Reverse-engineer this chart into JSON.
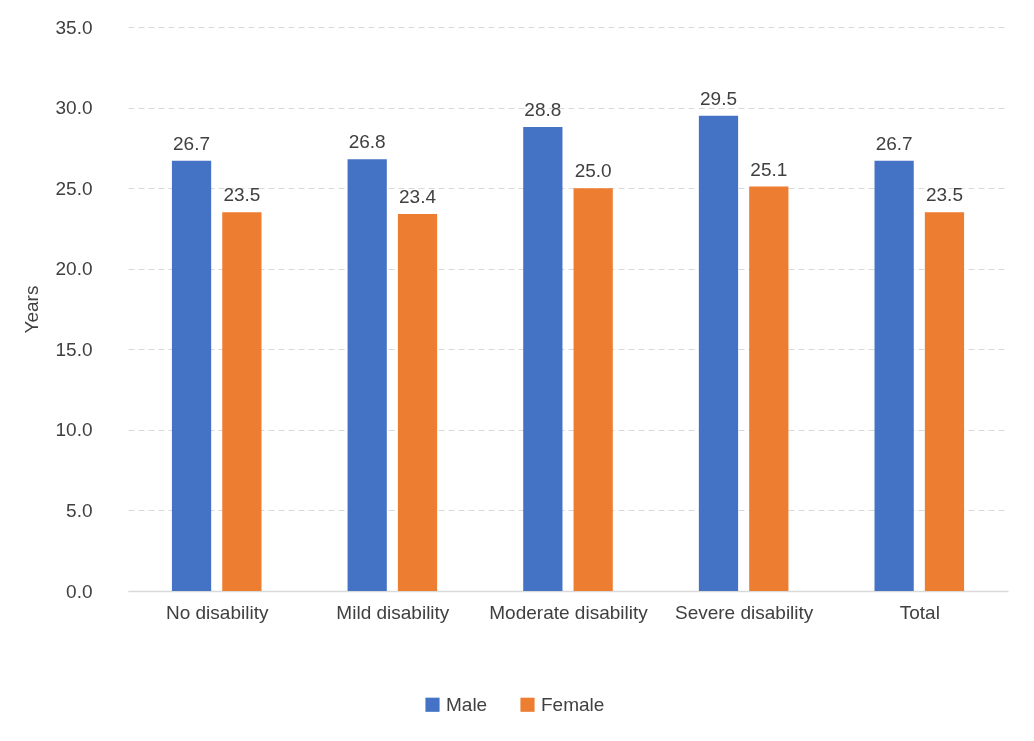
{
  "chart_data": {
    "type": "bar",
    "ylabel": "Years",
    "categories": [
      "No disability",
      "Mild disability",
      "Moderate disability",
      "Severe disability",
      "Total"
    ],
    "series": [
      {
        "name": "Male",
        "color": "#4472c4",
        "values": [
          26.7,
          26.8,
          28.8,
          29.5,
          26.7
        ],
        "value_labels": [
          "26.7",
          "26.8",
          "28.8",
          "29.5",
          "26.7"
        ]
      },
      {
        "name": "Female",
        "color": "#ed7d31",
        "values": [
          23.5,
          23.4,
          25.0,
          25.1,
          23.5
        ],
        "value_labels": [
          "23.5",
          "23.4",
          "25.0",
          "25.1",
          "23.5"
        ]
      }
    ],
    "ylim": [
      0,
      35
    ],
    "yticks": [
      {
        "value": 0,
        "label": "0.0"
      },
      {
        "value": 5,
        "label": "5.0"
      },
      {
        "value": 10,
        "label": "10.0"
      },
      {
        "value": 15,
        "label": "15.0"
      },
      {
        "value": 20,
        "label": "20.0"
      },
      {
        "value": 25,
        "label": "25.0"
      },
      {
        "value": 30,
        "label": "30.0"
      },
      {
        "value": 35,
        "label": "35.0"
      }
    ],
    "grid": "y",
    "legend": "bottom"
  }
}
